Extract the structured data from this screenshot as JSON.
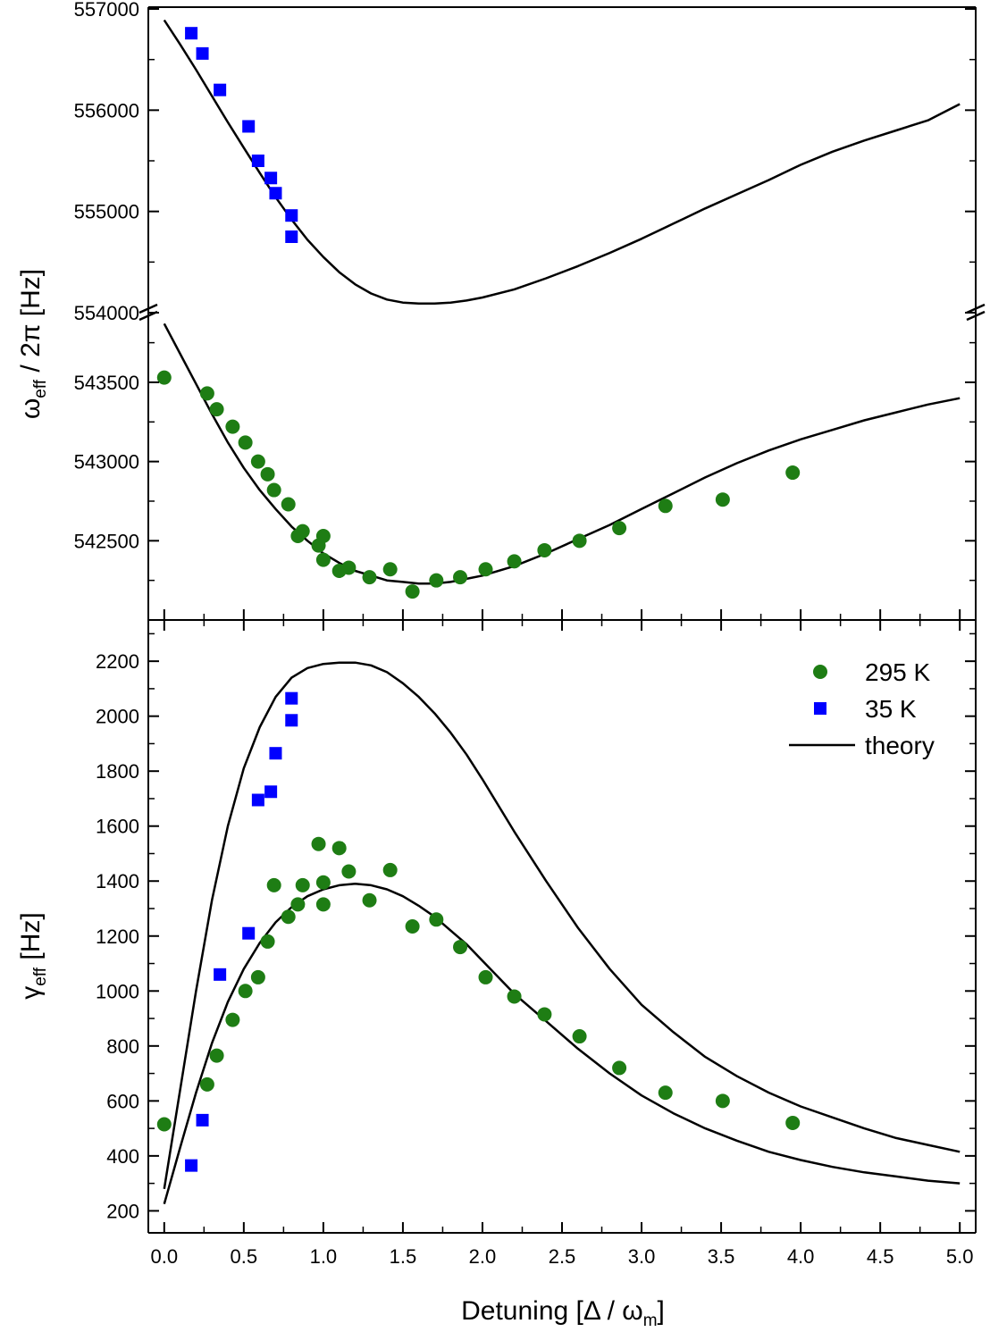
{
  "chart_data": [
    {
      "panel": "top",
      "type": "scatter",
      "ylabel_main": "ω",
      "ylabel_sub": "eff",
      "ylabel_rest": " / 2π [Hz]",
      "upper_segment": {
        "ylim": [
          554000,
          557000
        ],
        "yticks": [
          554000,
          555000,
          556000,
          557000
        ],
        "ytick_labels": [
          "554000",
          "555000",
          "556000",
          "557000"
        ]
      },
      "lower_segment": {
        "ylim": [
          542000,
          543900
        ],
        "yticks": [
          542500,
          543000,
          543500
        ],
        "ytick_labels": [
          "542500",
          "543000",
          "543500"
        ]
      },
      "series": [
        {
          "name": "35 K",
          "marker": "square",
          "color": "#0000ff",
          "segment": "upper",
          "x": [
            0.17,
            0.24,
            0.35,
            0.53,
            0.59,
            0.67,
            0.7,
            0.8,
            0.8
          ],
          "y": [
            556760,
            556560,
            556200,
            555840,
            555500,
            555330,
            555180,
            554960,
            554750
          ]
        },
        {
          "name": "295 K",
          "marker": "circle",
          "color": "#1e7d14",
          "segment": "lower",
          "x": [
            0.0,
            0.27,
            0.33,
            0.43,
            0.51,
            0.59,
            0.65,
            0.69,
            0.78,
            0.84,
            0.87,
            0.97,
            1.0,
            1.0,
            1.1,
            1.16,
            1.29,
            1.42,
            1.56,
            1.71,
            1.86,
            2.02,
            2.2,
            2.39,
            2.61,
            2.86,
            3.15,
            3.51,
            3.95
          ],
          "y": [
            543530,
            543430,
            543330,
            543220,
            543120,
            543000,
            542920,
            542820,
            542730,
            542530,
            542560,
            542470,
            542380,
            542530,
            542310,
            542330,
            542270,
            542320,
            542180,
            542250,
            542270,
            542320,
            542370,
            542440,
            542500,
            542580,
            542720,
            542760,
            542930
          ]
        }
      ],
      "theory": [
        {
          "name": "theory",
          "segment": "upper",
          "x": [
            0.0,
            0.1,
            0.2,
            0.3,
            0.4,
            0.5,
            0.6,
            0.7,
            0.8,
            0.9,
            1.0,
            1.1,
            1.2,
            1.3,
            1.4,
            1.5,
            1.6,
            1.7,
            1.8,
            1.9,
            2.0,
            2.2,
            2.4,
            2.6,
            2.8,
            3.0,
            3.2,
            3.4,
            3.6,
            3.8,
            4.0,
            4.2,
            4.4,
            4.6,
            4.8,
            5.0
          ],
          "y": [
            556890,
            556650,
            556400,
            556140,
            555880,
            555630,
            555380,
            555140,
            554920,
            554720,
            554550,
            554400,
            554280,
            554190,
            554130,
            554100,
            554090,
            554090,
            554100,
            554120,
            554150,
            554230,
            554340,
            554460,
            554590,
            554730,
            554880,
            555030,
            555170,
            555310,
            555460,
            555590,
            555700,
            555800,
            555900,
            556060
          ]
        },
        {
          "name": "theory",
          "segment": "lower",
          "x": [
            0.0,
            0.1,
            0.2,
            0.3,
            0.4,
            0.5,
            0.6,
            0.7,
            0.8,
            0.9,
            1.0,
            1.1,
            1.2,
            1.3,
            1.4,
            1.5,
            1.6,
            1.7,
            1.8,
            1.9,
            2.0,
            2.2,
            2.4,
            2.6,
            2.8,
            3.0,
            3.2,
            3.4,
            3.6,
            3.8,
            4.0,
            4.2,
            4.4,
            4.6,
            4.8,
            5.0
          ],
          "y": [
            543870,
            543680,
            543490,
            543300,
            543120,
            542960,
            542820,
            542700,
            542590,
            542500,
            542420,
            542360,
            542310,
            542280,
            542250,
            542240,
            542230,
            542230,
            542240,
            542260,
            542280,
            542340,
            542420,
            542510,
            542600,
            542700,
            542800,
            542900,
            542990,
            543070,
            543140,
            543200,
            543260,
            543310,
            543360,
            543400
          ]
        }
      ]
    },
    {
      "panel": "bottom",
      "type": "scatter",
      "xlabel": "Detuning [Δ / ω",
      "xlabel_sub": "m",
      "xlabel_end": "]",
      "ylabel_main": "γ",
      "ylabel_sub": "eff",
      "ylabel_rest": " [Hz]",
      "xlim": [
        -0.1,
        5.1
      ],
      "ylim": [
        120,
        2350
      ],
      "xticks": [
        0.0,
        0.5,
        1.0,
        1.5,
        2.0,
        2.5,
        3.0,
        3.5,
        4.0,
        4.5,
        5.0
      ],
      "xtick_labels": [
        "0.0",
        "0.5",
        "1.0",
        "1.5",
        "2.0",
        "2.5",
        "3.0",
        "3.5",
        "4.0",
        "4.5",
        "5.0"
      ],
      "yticks": [
        200,
        400,
        600,
        800,
        1000,
        1200,
        1400,
        1600,
        1800,
        2000,
        2200
      ],
      "ytick_labels": [
        "200",
        "400",
        "600",
        "800",
        "1000",
        "1200",
        "1400",
        "1600",
        "1800",
        "2000",
        "2200"
      ],
      "legend": {
        "position": "top-right",
        "entries": [
          {
            "label": "295 K",
            "marker": "circle",
            "color": "#1e7d14"
          },
          {
            "label": "35 K",
            "marker": "square",
            "color": "#0000ff"
          },
          {
            "label": "theory",
            "marker": "line",
            "color": "#000000"
          }
        ]
      },
      "series": [
        {
          "name": "295 K",
          "marker": "circle",
          "color": "#1e7d14",
          "x": [
            0.0,
            0.27,
            0.33,
            0.43,
            0.51,
            0.59,
            0.65,
            0.69,
            0.78,
            0.84,
            0.87,
            0.97,
            1.0,
            1.0,
            1.1,
            1.16,
            1.29,
            1.42,
            1.56,
            1.71,
            1.86,
            2.02,
            2.2,
            2.39,
            2.61,
            2.86,
            3.15,
            3.51,
            3.95
          ],
          "y": [
            515,
            660,
            765,
            895,
            1000,
            1050,
            1180,
            1385,
            1270,
            1315,
            1385,
            1535,
            1315,
            1395,
            1520,
            1435,
            1330,
            1440,
            1235,
            1260,
            1160,
            1050,
            980,
            915,
            835,
            720,
            630,
            600,
            520
          ]
        },
        {
          "name": "35 K",
          "marker": "square",
          "color": "#0000ff",
          "x": [
            0.17,
            0.24,
            0.35,
            0.53,
            0.59,
            0.67,
            0.7,
            0.8,
            0.8
          ],
          "y": [
            365,
            530,
            1060,
            1210,
            1695,
            1725,
            1865,
            1985,
            2065
          ]
        }
      ],
      "theory": [
        {
          "name": "theory 35 K",
          "x": [
            0.0,
            0.1,
            0.2,
            0.3,
            0.4,
            0.5,
            0.6,
            0.7,
            0.8,
            0.9,
            1.0,
            1.1,
            1.2,
            1.3,
            1.4,
            1.5,
            1.6,
            1.7,
            1.8,
            1.9,
            2.0,
            2.2,
            2.4,
            2.6,
            2.8,
            3.0,
            3.2,
            3.4,
            3.6,
            3.8,
            4.0,
            4.2,
            4.4,
            4.6,
            4.8,
            5.0
          ],
          "y": [
            280,
            640,
            1000,
            1330,
            1600,
            1810,
            1960,
            2070,
            2140,
            2175,
            2190,
            2195,
            2195,
            2185,
            2160,
            2120,
            2070,
            2010,
            1940,
            1860,
            1770,
            1580,
            1400,
            1230,
            1080,
            950,
            850,
            760,
            690,
            630,
            580,
            540,
            500,
            465,
            440,
            415
          ]
        },
        {
          "name": "theory 295 K",
          "x": [
            0.0,
            0.1,
            0.2,
            0.3,
            0.4,
            0.5,
            0.6,
            0.7,
            0.8,
            0.9,
            1.0,
            1.1,
            1.2,
            1.3,
            1.4,
            1.5,
            1.6,
            1.7,
            1.8,
            1.9,
            2.0,
            2.2,
            2.4,
            2.6,
            2.8,
            3.0,
            3.2,
            3.4,
            3.6,
            3.8,
            4.0,
            4.2,
            4.4,
            4.6,
            4.8,
            5.0
          ],
          "y": [
            225,
            430,
            630,
            810,
            960,
            1080,
            1175,
            1250,
            1305,
            1345,
            1370,
            1385,
            1390,
            1385,
            1370,
            1345,
            1310,
            1270,
            1220,
            1170,
            1110,
            990,
            890,
            790,
            700,
            620,
            555,
            500,
            455,
            415,
            385,
            360,
            340,
            325,
            310,
            300
          ]
        }
      ]
    }
  ]
}
